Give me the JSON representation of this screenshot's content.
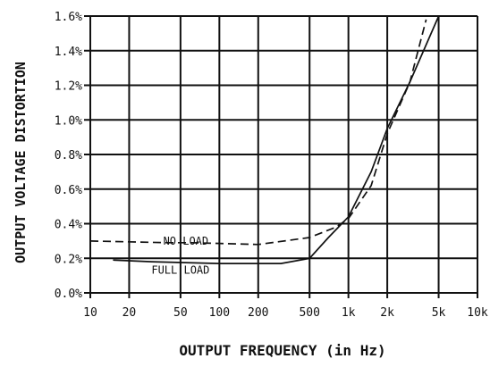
{
  "chart_data": {
    "type": "line",
    "xlabel": "OUTPUT FREQUENCY (in Hz)",
    "ylabel": "OUTPUT VOLTAGE DISTORTION",
    "x_scale": "log",
    "xlim": [
      10,
      10000
    ],
    "ylim": [
      0.0,
      1.6
    ],
    "grid": true,
    "x_ticks": [
      10,
      20,
      50,
      100,
      200,
      500,
      1000,
      2000,
      5000,
      10000
    ],
    "x_tick_labels": [
      "10",
      "20",
      "50",
      "100",
      "200",
      "500",
      "1k",
      "2k",
      "5k",
      "10k"
    ],
    "y_ticks": [
      0.0,
      0.2,
      0.4,
      0.6,
      0.8,
      1.0,
      1.2,
      1.4,
      1.6
    ],
    "y_tick_labels": [
      "0.0%",
      "0.2%",
      "0.4%",
      "0.6%",
      "0.8%",
      "1.0%",
      "1.2%",
      "1.4%",
      "1.6%"
    ],
    "annotations": [
      {
        "text": "NO LOAD",
        "x": 55,
        "y": 0.28
      },
      {
        "text": "FULL LOAD",
        "x": 50,
        "y": 0.11
      }
    ],
    "series": [
      {
        "style": "dashed",
        "x": [
          10,
          40,
          60,
          200,
          500,
          800,
          1000,
          1500,
          2000,
          3000,
          4000
        ],
        "y": [
          0.3,
          0.29,
          0.29,
          0.28,
          0.32,
          0.38,
          0.43,
          0.62,
          0.92,
          1.22,
          1.58
        ]
      },
      {
        "style": "solid",
        "x": [
          15,
          30,
          100,
          300,
          500,
          700,
          1000,
          1500,
          2000,
          3000,
          5000
        ],
        "y": [
          0.19,
          0.18,
          0.17,
          0.17,
          0.2,
          0.32,
          0.44,
          0.7,
          0.95,
          1.22,
          1.6
        ]
      }
    ]
  }
}
